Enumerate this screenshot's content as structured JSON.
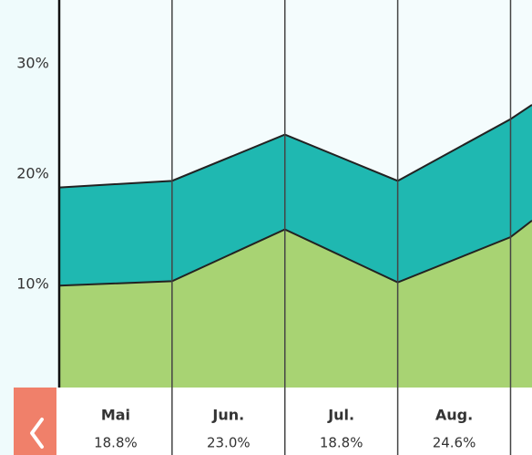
{
  "chart_data": {
    "type": "stacked-area",
    "x": [
      0,
      1,
      2,
      3,
      4,
      4.19
    ],
    "xlim": [
      0,
      4.19
    ],
    "ylim": [
      0,
      35.8
    ],
    "yticks": [
      {
        "value": 10,
        "label": "10%"
      },
      {
        "value": 20,
        "label": "20%"
      },
      {
        "value": 30,
        "label": "30%"
      }
    ],
    "series": [
      {
        "color": "#a8d373",
        "values": [
          9.9,
          10.3,
          15.0,
          10.2,
          14.3,
          15.8
        ]
      },
      {
        "color": "#1fb8b1",
        "values": [
          8.9,
          9.1,
          8.6,
          9.2,
          10.7,
          10.5
        ]
      }
    ],
    "columns": [
      {
        "label": "Mai",
        "value_label": "18.8%"
      },
      {
        "label": "Jun.",
        "value_label": "23.0%"
      },
      {
        "label": "Jul.",
        "value_label": "18.8%"
      },
      {
        "label": "Aug.",
        "value_label": "24.6%"
      }
    ]
  }
}
